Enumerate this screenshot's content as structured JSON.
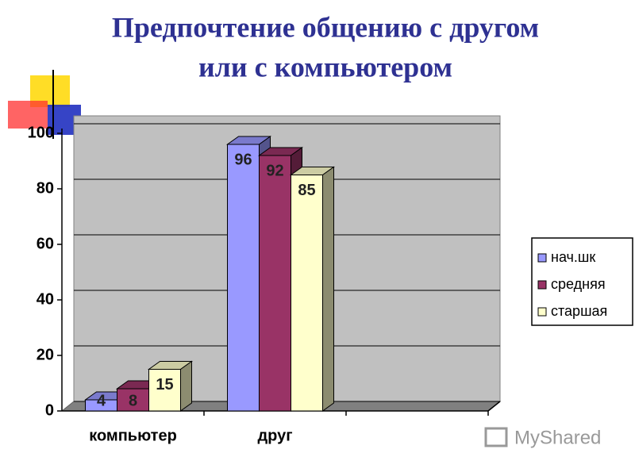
{
  "chart_data": {
    "type": "bar",
    "title": [
      "Предпочтение общению с другом",
      "или с компьютером"
    ],
    "categories": [
      "компьютер",
      "друг",
      null
    ],
    "series": [
      {
        "name": "нач.шк",
        "color": "#9999ff",
        "values": [
          4,
          96,
          null
        ]
      },
      {
        "name": "средняя",
        "color": "#993366",
        "values": [
          8,
          92,
          null
        ]
      },
      {
        "name": "старшая",
        "color": "#ffffcc",
        "values": [
          15,
          85,
          null
        ]
      }
    ],
    "ylim": [
      0,
      100
    ],
    "yticks": [
      0,
      20,
      40,
      60,
      80,
      100
    ],
    "grid": true,
    "legend": "right",
    "watermark": "MyShared"
  }
}
